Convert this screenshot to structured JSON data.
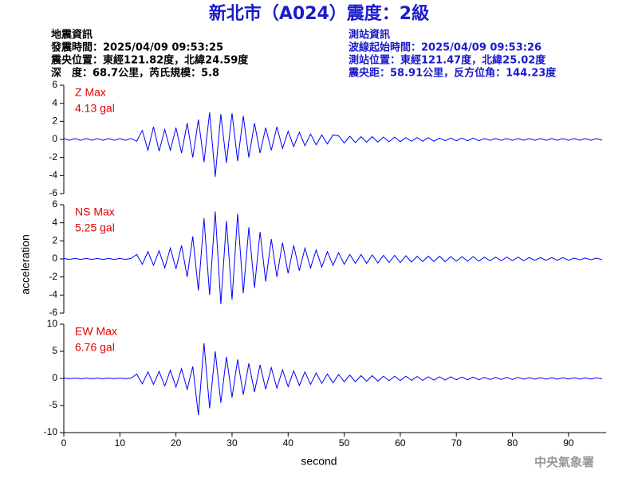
{
  "header": {
    "title": "新北市（A024）震度：2級",
    "left": [
      "地震資訊",
      "發震時間：2025/04/09 09:53:25",
      "震央位置：東經121.82度，北緯24.59度",
      "深　度：68.7公里，芮氏規模：5.8"
    ],
    "right": [
      "測站資訊",
      "波線起始時間：2025/04/09 09:53:26",
      "測站位置：東經121.47度，北緯25.02度",
      "震央距：58.91公里，反方位角：144.23度"
    ],
    "ylabel": "acceleration",
    "footer": "中央氣象署"
  },
  "chart_data": [
    {
      "type": "line",
      "label": "Z Max",
      "max_label": "4.13 gal",
      "color": "#0000ff",
      "label_color": "#e00000",
      "ylim": [
        -6,
        6
      ],
      "yticks": [
        -6,
        -4,
        -2,
        0,
        2,
        4,
        6
      ],
      "xlim": [
        0,
        96.7
      ],
      "x": [
        0,
        1,
        2,
        3,
        4,
        5,
        6,
        7,
        8,
        9,
        10,
        11,
        12,
        13,
        14,
        15,
        16,
        17,
        18,
        19,
        20,
        21,
        22,
        23,
        24,
        25,
        26,
        27,
        28,
        29,
        30,
        31,
        32,
        33,
        34,
        35,
        36,
        37,
        38,
        39,
        40,
        41,
        42,
        43,
        44,
        45,
        46,
        47,
        48,
        49,
        50,
        51,
        52,
        53,
        54,
        55,
        56,
        57,
        58,
        59,
        60,
        61,
        62,
        63,
        64,
        65,
        66,
        67,
        68,
        69,
        70,
        71,
        72,
        73,
        74,
        75,
        76,
        77,
        78,
        79,
        80,
        81,
        82,
        83,
        84,
        85,
        86,
        87,
        88,
        89,
        90,
        91,
        92,
        93,
        94,
        95,
        96
      ],
      "values": [
        0.1,
        -0.1,
        0.1,
        -0.1,
        0.1,
        -0.1,
        0.1,
        -0.1,
        0.1,
        -0.1,
        0.1,
        -0.1,
        0.1,
        -0.2,
        1.0,
        -1.2,
        1.4,
        -1.3,
        1.1,
        -1.2,
        1.3,
        -1.5,
        1.8,
        -2.0,
        2.2,
        -2.5,
        3.0,
        -4.13,
        2.8,
        -2.6,
        2.9,
        -2.4,
        2.6,
        -2.0,
        1.8,
        -1.5,
        1.3,
        -1.2,
        1.4,
        -1.0,
        0.9,
        -0.8,
        0.8,
        -0.7,
        0.6,
        -0.6,
        0.5,
        -0.5,
        0.5,
        0.4,
        -0.4,
        0.35,
        -0.35,
        0.3,
        -0.3,
        0.3,
        -0.3,
        0.25,
        -0.25,
        0.25,
        -0.25,
        0.2,
        -0.2,
        0.2,
        -0.2,
        0.2,
        -0.2,
        0.15,
        -0.15,
        0.15,
        -0.15,
        0.15,
        -0.15,
        0.15,
        -0.15,
        0.1,
        -0.1,
        0.1,
        -0.1,
        0.1,
        -0.1,
        0.1,
        -0.1,
        0.1,
        -0.1,
        0.1,
        -0.1,
        0.1,
        -0.1,
        0.1,
        -0.1,
        0.1,
        -0.1,
        0.1,
        -0.1,
        0.1,
        -0.1
      ]
    },
    {
      "type": "line",
      "label": "NS Max",
      "max_label": "5.25 gal",
      "color": "#0000ff",
      "label_color": "#e00000",
      "ylim": [
        -6,
        6
      ],
      "yticks": [
        -6,
        -4,
        -2,
        0,
        2,
        4,
        6
      ],
      "xlim": [
        0,
        96.7
      ],
      "x": [
        0,
        1,
        2,
        3,
        4,
        5,
        6,
        7,
        8,
        9,
        10,
        11,
        12,
        13,
        14,
        15,
        16,
        17,
        18,
        19,
        20,
        21,
        22,
        23,
        24,
        25,
        26,
        27,
        28,
        29,
        30,
        31,
        32,
        33,
        34,
        35,
        36,
        37,
        38,
        39,
        40,
        41,
        42,
        43,
        44,
        45,
        46,
        47,
        48,
        49,
        50,
        51,
        52,
        53,
        54,
        55,
        56,
        57,
        58,
        59,
        60,
        61,
        62,
        63,
        64,
        65,
        66,
        67,
        68,
        69,
        70,
        71,
        72,
        73,
        74,
        75,
        76,
        77,
        78,
        79,
        80,
        81,
        82,
        83,
        84,
        85,
        86,
        87,
        88,
        89,
        90,
        91,
        92,
        93,
        94,
        95,
        96
      ],
      "values": [
        0.05,
        -0.05,
        0.05,
        -0.05,
        0.05,
        -0.05,
        0.05,
        -0.05,
        0.05,
        -0.05,
        0.05,
        -0.05,
        0.05,
        0.5,
        -0.6,
        0.8,
        -0.7,
        0.9,
        -1.0,
        1.2,
        -1.1,
        1.5,
        -2.0,
        2.5,
        -3.5,
        4.5,
        -4.0,
        5.25,
        -5.0,
        4.2,
        -4.5,
        5.0,
        -3.8,
        3.5,
        -3.2,
        3.0,
        -2.5,
        2.2,
        -2.0,
        1.8,
        -1.6,
        1.5,
        -1.3,
        1.2,
        -1.0,
        1.0,
        -0.9,
        0.8,
        -0.7,
        0.7,
        -0.6,
        0.5,
        -0.5,
        0.5,
        -0.5,
        0.45,
        -0.45,
        0.4,
        -0.4,
        0.4,
        -0.4,
        0.35,
        -0.35,
        0.3,
        -0.3,
        0.3,
        -0.3,
        0.3,
        -0.3,
        0.25,
        -0.25,
        0.25,
        -0.25,
        0.25,
        -0.25,
        0.2,
        -0.2,
        0.2,
        -0.2,
        0.2,
        -0.2,
        0.2,
        -0.2,
        0.15,
        -0.15,
        0.15,
        -0.15,
        0.15,
        -0.15,
        0.15,
        -0.15,
        0.1,
        -0.1,
        0.1,
        -0.1,
        0.1,
        -0.1
      ]
    },
    {
      "type": "line",
      "label": "EW Max",
      "max_label": "6.76 gal",
      "color": "#0000ff",
      "label_color": "#e00000",
      "ylim": [
        -10,
        10
      ],
      "yticks": [
        -10,
        -5,
        0,
        5,
        10
      ],
      "xlim": [
        0,
        96.7
      ],
      "xticks": [
        0,
        10,
        20,
        30,
        40,
        50,
        60,
        70,
        80,
        90
      ],
      "xlabel": "second",
      "x": [
        0,
        1,
        2,
        3,
        4,
        5,
        6,
        7,
        8,
        9,
        10,
        11,
        12,
        13,
        14,
        15,
        16,
        17,
        18,
        19,
        20,
        21,
        22,
        23,
        24,
        25,
        26,
        27,
        28,
        29,
        30,
        31,
        32,
        33,
        34,
        35,
        36,
        37,
        38,
        39,
        40,
        41,
        42,
        43,
        44,
        45,
        46,
        47,
        48,
        49,
        50,
        51,
        52,
        53,
        54,
        55,
        56,
        57,
        58,
        59,
        60,
        61,
        62,
        63,
        64,
        65,
        66,
        67,
        68,
        69,
        70,
        71,
        72,
        73,
        74,
        75,
        76,
        77,
        78,
        79,
        80,
        81,
        82,
        83,
        84,
        85,
        86,
        87,
        88,
        89,
        90,
        91,
        92,
        93,
        94,
        95,
        96
      ],
      "values": [
        0.05,
        -0.05,
        0.05,
        -0.05,
        0.05,
        -0.05,
        0.05,
        -0.05,
        0.05,
        -0.05,
        0.05,
        -0.05,
        0.05,
        0.8,
        -1.0,
        1.2,
        -1.1,
        1.3,
        -1.4,
        1.5,
        -1.6,
        1.8,
        -2.0,
        2.2,
        -6.76,
        6.5,
        -5.5,
        5.0,
        -4.5,
        4.0,
        -3.5,
        3.5,
        -3.0,
        2.8,
        -2.5,
        2.5,
        -2.0,
        2.0,
        -1.8,
        1.6,
        -1.5,
        1.4,
        -1.3,
        1.2,
        -1.1,
        1.0,
        -0.9,
        0.8,
        -0.8,
        0.7,
        -0.6,
        0.6,
        -0.6,
        0.5,
        -0.5,
        0.5,
        -0.5,
        0.4,
        -0.4,
        0.4,
        -0.4,
        0.4,
        -0.35,
        0.35,
        -0.35,
        0.3,
        -0.3,
        0.3,
        -0.3,
        0.3,
        -0.25,
        0.25,
        -0.25,
        0.25,
        -0.25,
        0.2,
        -0.2,
        0.2,
        -0.2,
        0.2,
        -0.2,
        0.2,
        -0.15,
        0.15,
        -0.15,
        0.15,
        -0.15,
        0.15,
        -0.15,
        0.1,
        -0.1,
        0.1,
        -0.1,
        0.1,
        -0.1,
        0.1,
        -0.1
      ]
    }
  ]
}
